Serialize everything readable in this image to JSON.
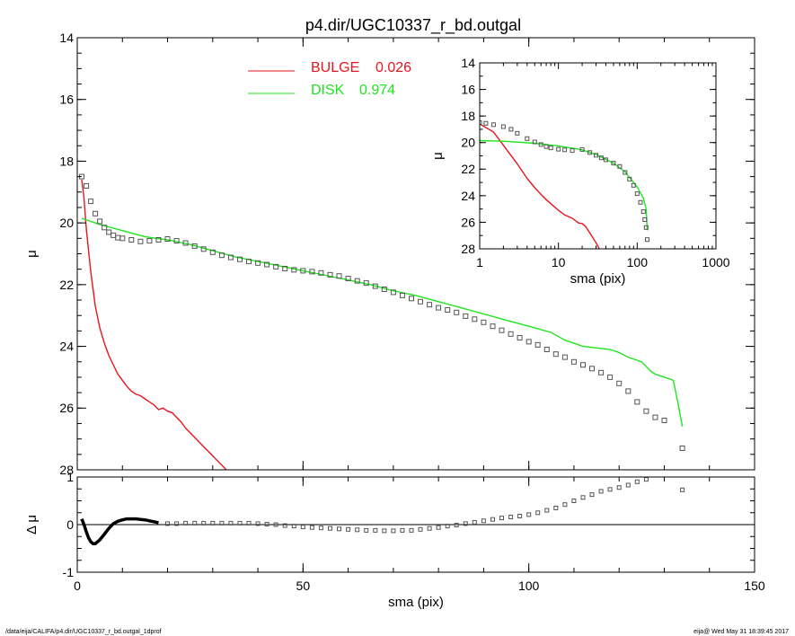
{
  "page": {
    "title": "p4.dir/UGC10337_r_bd.outgal",
    "footer_left": "/data/eija/CALIFA/p4.dir/UGC10337_r_bd.outgal_1dprof",
    "footer_right": "eija@  Wed May 31 18:39:45 2017"
  },
  "colors": {
    "bulge": "#e8141e",
    "disk": "#1ee61e",
    "data": "#555555",
    "axis": "#000000"
  },
  "chart_data": [
    {
      "type": "line",
      "panel": "main",
      "title": "p4.dir/UGC10337_r_bd.outgal",
      "xlabel": "sma (pix)",
      "ylabel": "μ",
      "xlim": [
        0,
        150
      ],
      "ylim": [
        28,
        14
      ],
      "x_ticks": [
        0,
        50,
        100,
        150
      ],
      "y_ticks": [
        14,
        16,
        18,
        20,
        22,
        24,
        26,
        28
      ],
      "legend": [
        {
          "label": "BULGE",
          "value": "0.026",
          "color": "#e8141e"
        },
        {
          "label": "DISK",
          "value": "0.974",
          "color": "#1ee61e"
        }
      ],
      "series": [
        {
          "name": "BULGE",
          "style": "line",
          "color": "#e8141e",
          "x": [
            1,
            1.5,
            2,
            3,
            4,
            5,
            6,
            7,
            8,
            9,
            10,
            11,
            12,
            13,
            14,
            15,
            16,
            17,
            18,
            19,
            20,
            21,
            22,
            23,
            24,
            25,
            26,
            27,
            28,
            29,
            30,
            31,
            32,
            33
          ],
          "y": [
            18.6,
            19.2,
            20.2,
            21.6,
            22.7,
            23.4,
            23.9,
            24.3,
            24.6,
            24.9,
            25.1,
            25.3,
            25.45,
            25.55,
            25.6,
            25.7,
            25.8,
            25.9,
            26.05,
            26.0,
            26.1,
            26.15,
            26.3,
            26.45,
            26.65,
            26.8,
            26.95,
            27.1,
            27.25,
            27.4,
            27.55,
            27.7,
            27.85,
            28.0
          ]
        },
        {
          "name": "DISK",
          "style": "line",
          "color": "#1ee61e",
          "x": [
            1,
            5,
            10,
            15,
            20,
            25,
            30,
            35,
            40,
            45,
            50,
            55,
            60,
            65,
            70,
            75,
            80,
            85,
            90,
            95,
            100,
            105,
            108,
            110,
            112,
            115,
            118,
            120,
            122,
            125,
            127,
            128,
            130,
            131,
            132,
            133,
            134
          ],
          "y": [
            19.85,
            20.05,
            20.25,
            20.45,
            20.55,
            20.7,
            20.9,
            21.1,
            21.25,
            21.4,
            21.55,
            21.7,
            21.85,
            22.0,
            22.2,
            22.35,
            22.55,
            22.75,
            22.95,
            23.15,
            23.35,
            23.55,
            23.8,
            23.9,
            24.0,
            24.05,
            24.1,
            24.2,
            24.35,
            24.5,
            24.8,
            24.9,
            25.0,
            25.05,
            25.1,
            25.8,
            26.6
          ]
        },
        {
          "name": "data",
          "style": "markers",
          "color": "#555555",
          "x": [
            1,
            2,
            3,
            4,
            5,
            6,
            7,
            8,
            9,
            10,
            12,
            14,
            16,
            18,
            20,
            22,
            24,
            26,
            28,
            30,
            32,
            34,
            36,
            38,
            40,
            42,
            44,
            46,
            48,
            50,
            52,
            54,
            56,
            58,
            60,
            62,
            64,
            66,
            68,
            70,
            72,
            74,
            76,
            78,
            80,
            82,
            84,
            86,
            88,
            90,
            92,
            94,
            96,
            98,
            100,
            102,
            104,
            106,
            108,
            110,
            112,
            114,
            116,
            118,
            120,
            122,
            124,
            126,
            128,
            130,
            134
          ],
          "y": [
            18.5,
            18.8,
            19.3,
            19.7,
            19.95,
            20.15,
            20.3,
            20.4,
            20.48,
            20.5,
            20.55,
            20.6,
            20.58,
            20.55,
            20.52,
            20.58,
            20.65,
            20.75,
            20.85,
            20.95,
            21.05,
            21.12,
            21.18,
            21.25,
            21.3,
            21.35,
            21.42,
            21.48,
            21.52,
            21.55,
            21.58,
            21.62,
            21.68,
            21.72,
            21.8,
            21.88,
            21.95,
            22.05,
            22.15,
            22.25,
            22.35,
            22.45,
            22.55,
            22.65,
            22.75,
            22.82,
            22.9,
            23.02,
            23.12,
            23.22,
            23.35,
            23.48,
            23.6,
            23.72,
            23.85,
            23.95,
            24.1,
            24.25,
            24.35,
            24.5,
            24.6,
            24.72,
            24.85,
            25.0,
            25.2,
            25.45,
            25.8,
            26.1,
            26.3,
            26.4,
            27.3
          ]
        }
      ]
    },
    {
      "type": "scatter",
      "panel": "residual",
      "xlabel": "sma (pix)",
      "ylabel": "Δ μ",
      "xlim": [
        0,
        150
      ],
      "ylim": [
        -1.0,
        1.0
      ],
      "x_ticks": [
        0,
        50,
        100,
        150
      ],
      "y_ticks": [
        -1,
        0,
        1
      ],
      "series": [
        {
          "name": "residual-curve",
          "style": "line",
          "color": "#000000",
          "x": [
            1,
            1.5,
            2,
            2.5,
            3,
            3.5,
            4,
            5,
            6,
            7,
            8,
            9,
            10,
            11,
            12,
            13,
            14,
            15,
            16,
            17,
            18
          ],
          "y": [
            0.12,
            0.0,
            -0.15,
            -0.28,
            -0.36,
            -0.4,
            -0.4,
            -0.32,
            -0.2,
            -0.08,
            0.02,
            0.07,
            0.1,
            0.12,
            0.12,
            0.12,
            0.11,
            0.1,
            0.08,
            0.06,
            0.04
          ]
        },
        {
          "name": "residual-points",
          "style": "markers",
          "color": "#555555",
          "x": [
            20,
            22,
            24,
            26,
            28,
            30,
            32,
            34,
            36,
            38,
            40,
            42,
            44,
            46,
            48,
            50,
            52,
            54,
            56,
            58,
            60,
            62,
            64,
            66,
            68,
            70,
            72,
            74,
            76,
            78,
            80,
            82,
            84,
            86,
            88,
            90,
            92,
            94,
            96,
            98,
            100,
            102,
            104,
            106,
            108,
            110,
            112,
            114,
            116,
            118,
            120,
            122,
            124,
            126,
            134
          ],
          "y": [
            0.02,
            0.02,
            0.03,
            0.03,
            0.03,
            0.03,
            0.03,
            0.03,
            0.03,
            0.03,
            0.02,
            0.01,
            0.0,
            -0.02,
            -0.03,
            -0.05,
            -0.06,
            -0.07,
            -0.08,
            -0.09,
            -0.1,
            -0.11,
            -0.12,
            -0.12,
            -0.13,
            -0.13,
            -0.12,
            -0.12,
            -0.1,
            -0.08,
            -0.06,
            -0.03,
            -0.01,
            0.02,
            0.05,
            0.08,
            0.11,
            0.14,
            0.16,
            0.18,
            0.21,
            0.25,
            0.3,
            0.35,
            0.42,
            0.5,
            0.57,
            0.63,
            0.7,
            0.74,
            0.78,
            0.83,
            0.9,
            0.95,
            0.73
          ]
        }
      ]
    },
    {
      "type": "line",
      "panel": "inset",
      "xlabel": "sma (pix)",
      "ylabel": "μ",
      "xscale": "log",
      "xlim": [
        1,
        1000
      ],
      "ylim": [
        28,
        14
      ],
      "x_ticks": [
        1,
        10,
        100,
        1000
      ],
      "y_ticks": [
        14,
        16,
        18,
        20,
        22,
        24,
        26,
        28
      ],
      "series": [
        {
          "name": "BULGE",
          "style": "line",
          "color": "#e8141e",
          "x": [
            1,
            1.5,
            2,
            3,
            4,
            5,
            6,
            7,
            8,
            10,
            12,
            15,
            18,
            20,
            22,
            25,
            30,
            33
          ],
          "y": [
            18.6,
            19.2,
            20.2,
            21.6,
            22.7,
            23.4,
            23.9,
            24.3,
            24.6,
            25.1,
            25.45,
            25.7,
            26.05,
            26.1,
            26.3,
            26.8,
            27.55,
            28.0
          ]
        },
        {
          "name": "DISK",
          "style": "line",
          "color": "#1ee61e",
          "x": [
            1,
            2,
            5,
            10,
            20,
            30,
            50,
            70,
            100,
            120,
            130,
            134
          ],
          "y": [
            19.85,
            19.9,
            20.05,
            20.25,
            20.55,
            20.9,
            21.55,
            22.2,
            23.35,
            24.2,
            25.0,
            26.6
          ]
        },
        {
          "name": "data",
          "style": "markers",
          "color": "#555555",
          "x": [
            1,
            1.2,
            1.5,
            2,
            2.5,
            3,
            4,
            5,
            6,
            7,
            8,
            10,
            12,
            15,
            20,
            25,
            30,
            35,
            40,
            50,
            60,
            70,
            80,
            90,
            100,
            110,
            120,
            125,
            130,
            134
          ],
          "y": [
            18.5,
            18.55,
            18.65,
            18.8,
            19.0,
            19.3,
            19.7,
            19.95,
            20.15,
            20.3,
            20.4,
            20.5,
            20.55,
            20.6,
            20.52,
            20.75,
            20.95,
            21.15,
            21.3,
            21.55,
            21.8,
            22.25,
            22.75,
            23.22,
            23.85,
            24.5,
            25.2,
            25.8,
            26.4,
            27.3
          ]
        }
      ]
    }
  ]
}
